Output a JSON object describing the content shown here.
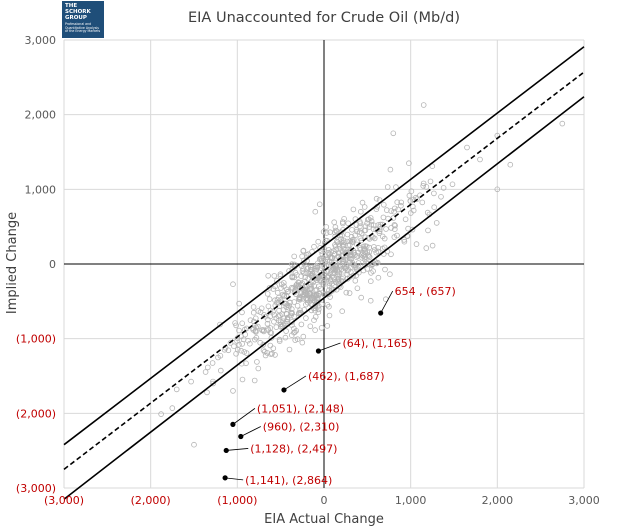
{
  "logo": {
    "line1": "THE",
    "line2": "SCHORK",
    "line3": "GROUP",
    "tagline": "Professional and Quantitative Analysis of the Energy Markets"
  },
  "colors": {
    "negative_label": "#c00000",
    "positive_label": "#595959",
    "annotation": "#c00000",
    "scatter_point": "#b3b3b3",
    "band_line": "#000000",
    "grid": "#d9d9d9",
    "axis": "#000000",
    "logo_bg": "#1f4e79"
  },
  "chart_data": {
    "type": "scatter",
    "title": "EIA Unaccounted for Crude Oil (Mb/d)",
    "xlabel": "EIA Actual Change",
    "ylabel": "Implied Change",
    "xlim": [
      -3000,
      3000
    ],
    "ylim": [
      -3000,
      3000
    ],
    "grid": true,
    "x_ticks": [
      -3000,
      -2000,
      -1000,
      0,
      1000,
      2000,
      3000
    ],
    "y_ticks": [
      -3000,
      -2000,
      -1000,
      0,
      1000,
      2000,
      3000
    ],
    "x_tick_labels": [
      "(3,000)",
      "(2,000)",
      "(1,000)",
      "0",
      "1,000",
      "2,000",
      "3,000"
    ],
    "y_tick_labels": [
      "(3,000)",
      "(2,000)",
      "(1,000)",
      "0",
      "1,000",
      "2,000",
      "3,000"
    ],
    "lines": [
      {
        "name": "upper band",
        "style": "solid",
        "x": [
          -3000,
          3000
        ],
        "y": [
          -2420,
          2910
        ]
      },
      {
        "name": "fit",
        "style": "dashed",
        "x": [
          -3000,
          3000
        ],
        "y": [
          -2750,
          2570
        ]
      },
      {
        "name": "lower band",
        "style": "solid",
        "x": [
          -3000,
          3000
        ],
        "y": [
          -3150,
          2240
        ]
      }
    ],
    "cloud": {
      "description": "weekly observations",
      "count": 700,
      "slope": 0.89,
      "intercept": -170,
      "seed": 7,
      "sample_points": [
        [
          -1700,
          -1680
        ],
        [
          -1500,
          -2420
        ],
        [
          -1880,
          -2010
        ],
        [
          -1750,
          -1930
        ],
        [
          -1350,
          -1720
        ],
        [
          -1280,
          -1600
        ],
        [
          -1050,
          -1700
        ],
        [
          -900,
          -1330
        ],
        [
          -1050,
          -270
        ],
        [
          -980,
          -530
        ],
        [
          -1200,
          -810
        ],
        [
          -800,
          -1560
        ],
        [
          -700,
          -1080
        ],
        [
          -400,
          -560
        ],
        [
          -200,
          -300
        ],
        [
          0,
          -100
        ],
        [
          150,
          0
        ],
        [
          300,
          120
        ],
        [
          500,
          160
        ],
        [
          700,
          340
        ],
        [
          800,
          1750
        ],
        [
          830,
          1030
        ],
        [
          1150,
          2130
        ],
        [
          980,
          1350
        ],
        [
          1250,
          1310
        ],
        [
          1200,
          450
        ],
        [
          1350,
          900
        ],
        [
          1300,
          550
        ],
        [
          1800,
          1400
        ],
        [
          2000,
          1720
        ],
        [
          2000,
          1000
        ],
        [
          2150,
          1330
        ],
        [
          2750,
          1880
        ],
        [
          1650,
          1560
        ],
        [
          -600,
          -1200
        ],
        [
          -50,
          800
        ],
        [
          -100,
          700
        ]
      ]
    },
    "outliers": [
      {
        "x": 654,
        "y": -657,
        "label": "654 , (657)"
      },
      {
        "x": -64,
        "y": -1165,
        "label": "(64), (1,165)"
      },
      {
        "x": -462,
        "y": -1687,
        "label": "(462), (1,687)"
      },
      {
        "x": -1051,
        "y": -2148,
        "label": "(1,051), (2,148)"
      },
      {
        "x": -960,
        "y": -2310,
        "label": "(960), (2,310)"
      },
      {
        "x": -1128,
        "y": -2497,
        "label": "(1,128), (2,497)"
      },
      {
        "x": -1141,
        "y": -2864,
        "label": "(1,141), (2,864)"
      }
    ]
  }
}
